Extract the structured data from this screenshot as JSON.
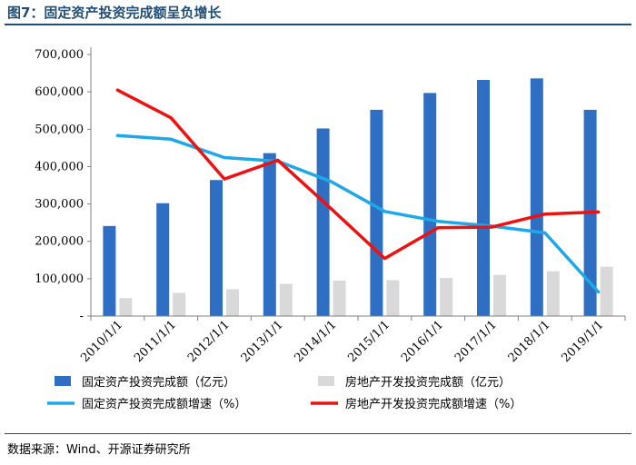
{
  "figure_title": "图7：固定资产投资完成额呈负增长",
  "source_text": "数据来源：Wind、开源证券研究所",
  "colors": {
    "title": "#1f4e79",
    "bar_fixed": "#2e6fc4",
    "bar_realestate": "#d9d9d9",
    "line_fixed": "#1ea8e8",
    "line_realestate": "#ee1111"
  },
  "chart_data": {
    "type": "bar",
    "title": "",
    "categories": [
      "2010/1/1",
      "2011/1/1",
      "2012/1/1",
      "2013/1/1",
      "2014/1/1",
      "2015/1/1",
      "2016/1/1",
      "2017/1/1",
      "2018/1/1",
      "2019/1/1"
    ],
    "ylim": [
      0,
      700000
    ],
    "yticks": [
      0,
      100000,
      200000,
      300000,
      400000,
      500000,
      600000,
      700000
    ],
    "ytick_labels": [
      "-",
      "100,000",
      "200,000",
      "300,000",
      "400,000",
      "500,000",
      "600,000",
      "700,000"
    ],
    "grid": false,
    "legend_position": "bottom",
    "series": [
      {
        "name": "固定资产投资完成额（亿元）",
        "type": "bar",
        "color": "#2e6fc4",
        "values": [
          241000,
          302000,
          364000,
          436000,
          502000,
          552000,
          597000,
          632000,
          636000,
          552000
        ]
      },
      {
        "name": "房地产开发投资完成额（亿元）",
        "type": "bar",
        "color": "#d9d9d9",
        "values": [
          48000,
          62000,
          72000,
          86000,
          95000,
          96000,
          102000,
          110000,
          120000,
          132000
        ]
      },
      {
        "name": "固定资产投资完成额增速（%）",
        "type": "line",
        "color": "#1ea8e8",
        "values": [
          24.5,
          23.8,
          20.3,
          19.6,
          15.7,
          10.0,
          8.1,
          7.2,
          5.9,
          -5.4
        ]
      },
      {
        "name": "房地产开发投资完成额增速（%）",
        "type": "line",
        "color": "#ee1111",
        "values": [
          33.2,
          27.9,
          16.2,
          19.8,
          10.5,
          1.0,
          6.9,
          7.0,
          9.5,
          9.9
        ]
      }
    ]
  }
}
